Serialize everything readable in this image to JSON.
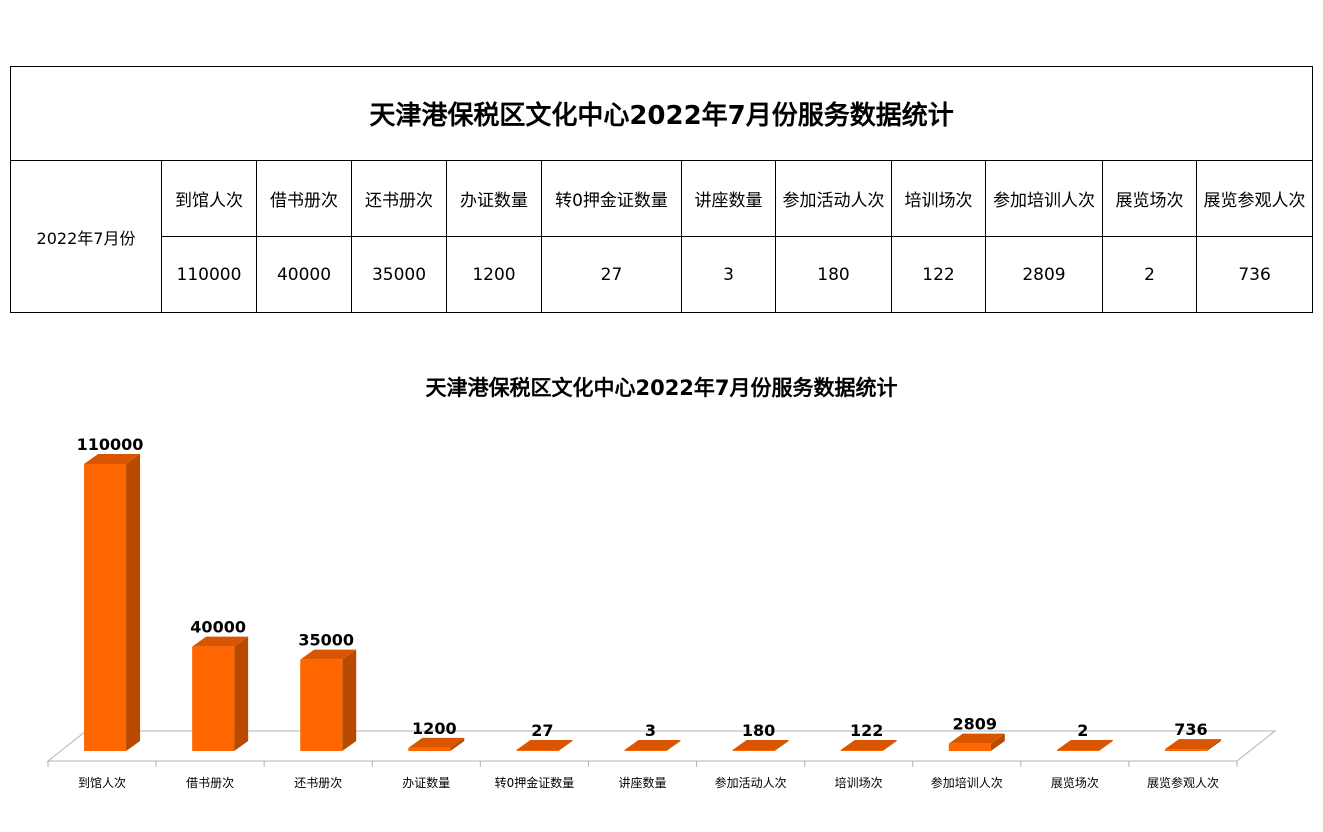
{
  "table": {
    "title": "天津港保税区文化中心2022年7月份服务数据统计",
    "period": "2022年7月份",
    "headers": [
      "到馆人次",
      "借书册次",
      "还书册次",
      "办证数量",
      "转0押金证数量",
      "讲座数量",
      "参加活动人次",
      "培训场次",
      "参加培训人次",
      "展览场次",
      "展览参观人次"
    ],
    "values": [
      "110000",
      "40000",
      "35000",
      "1200",
      "27",
      "3",
      "180",
      "122",
      "2809",
      "2",
      "736"
    ]
  },
  "chart_data": {
    "type": "bar",
    "title": "天津港保税区文化中心2022年7月份服务数据统计",
    "categories": [
      "到馆人次",
      "借书册次",
      "还书册次",
      "办证数量",
      "转0押金证数量",
      "讲座数量",
      "参加活动人次",
      "培训场次",
      "参加培训人次",
      "展览场次",
      "展览参观人次"
    ],
    "values": [
      110000,
      40000,
      35000,
      1200,
      27,
      3,
      180,
      122,
      2809,
      2,
      736
    ],
    "ylim": [
      0,
      110000
    ],
    "grid": false,
    "legend": "none",
    "bar_color": "#ff6600",
    "bar_side_color": "#b84a00",
    "bar_top_color": "#d95500",
    "data_labels": true,
    "style": "3d-column"
  }
}
